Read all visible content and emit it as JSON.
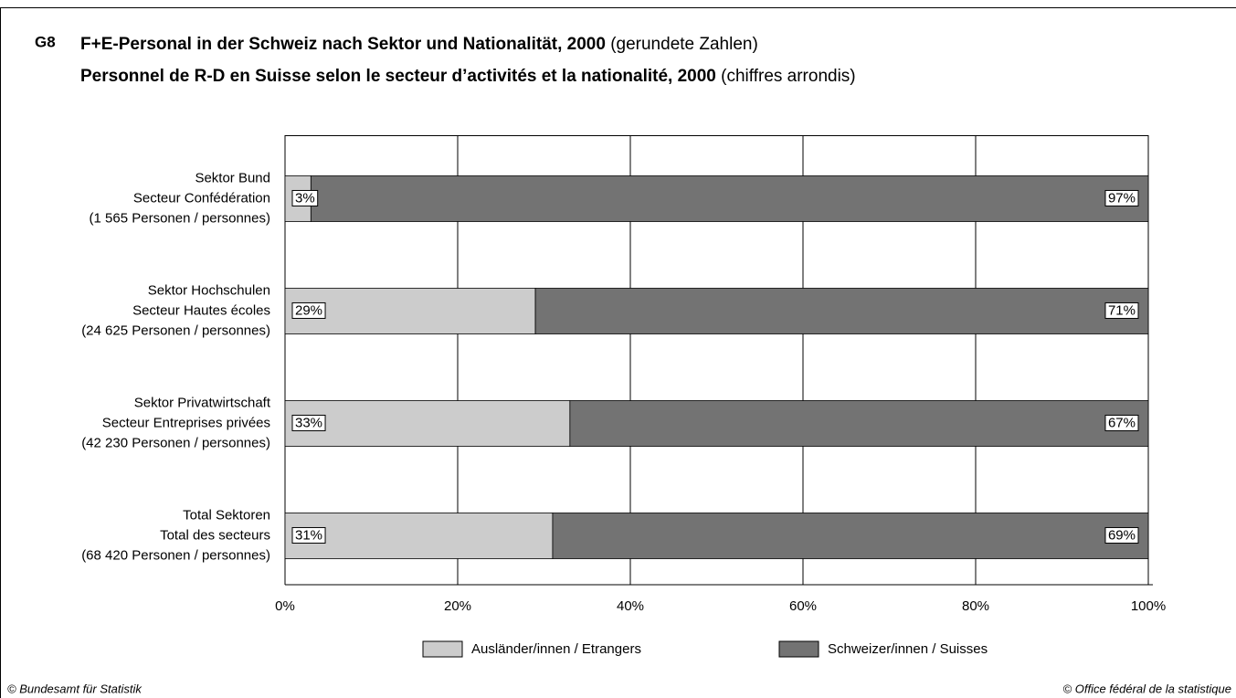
{
  "chart_data": {
    "type": "stacked-barh",
    "label": "G8",
    "title": [
      {
        "bold": "F+E-Personal in der Schweiz nach Sektor und Nationalität, 2000",
        "normal": "(gerundete Zahlen)"
      },
      {
        "bold": "Personnel de R-D en Suisse selon le secteur d’activités et la nationalité, 2000",
        "normal": "(chiffres arrondis)"
      }
    ],
    "categories": [
      [
        "Sektor Bund",
        "Secteur Confédération",
        "(1 565 Personen / personnes)"
      ],
      [
        "Sektor Hochschulen",
        "Secteur Hautes écoles",
        "(24 625 Personen / personnes)"
      ],
      [
        "Sektor Privatwirtschaft",
        "Secteur Entreprises privées",
        "(42 230 Personen / personnes)"
      ],
      [
        "Total Sektoren",
        "Total des secteurs",
        "(68 420 Personen / personnes)"
      ]
    ],
    "series": [
      {
        "name": "Ausländer/innen / Etrangers",
        "color": "#cccccc",
        "values": [
          3,
          29,
          33,
          31
        ],
        "value_labels": [
          "3%",
          "29%",
          "33%",
          "31%"
        ]
      },
      {
        "name": "Schweizer/innen / Suisses",
        "color": "#737373",
        "values": [
          97,
          71,
          67,
          69
        ],
        "value_labels": [
          "97%",
          "71%",
          "67%",
          "69%"
        ]
      }
    ],
    "xlim": [
      0,
      100
    ],
    "xticks": [
      {
        "value": 0,
        "label": "0%"
      },
      {
        "value": 20,
        "label": "20%"
      },
      {
        "value": 40,
        "label": "40%"
      },
      {
        "value": 60,
        "label": "60%"
      },
      {
        "value": 80,
        "label": "80%"
      },
      {
        "value": 100,
        "label": "100%"
      }
    ],
    "grid": true,
    "legend": "bottom",
    "footer": [
      "© Bundesamt für Statistik",
      "© Office fédéral de la statistique"
    ]
  }
}
